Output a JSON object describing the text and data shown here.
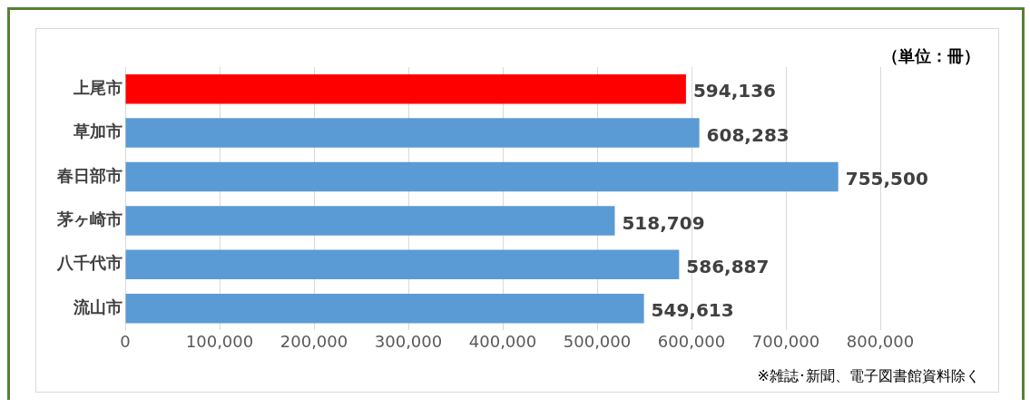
{
  "chart_data": {
    "type": "bar",
    "orientation": "horizontal",
    "categories": [
      "上尾市",
      "草加市",
      "春日部市",
      "茅ヶ崎市",
      "八千代市",
      "流山市"
    ],
    "values": [
      594136,
      608283,
      755500,
      518709,
      586887,
      549613
    ],
    "colors": [
      "#ff0000",
      "#5b9bd5",
      "#5b9bd5",
      "#5b9bd5",
      "#5b9bd5",
      "#5b9bd5"
    ],
    "value_labels": [
      "594,136",
      "608,283",
      "755,500",
      "518,709",
      "586,887",
      "549,613"
    ],
    "xlim": [
      0,
      800000
    ],
    "xticks": [
      0,
      {
        "value": 100000,
        "label": "100,000"
      },
      {
        "value": 200000,
        "label": "200,000"
      },
      {
        "value": 300000,
        "label": "300,000"
      },
      {
        "value": 400000,
        "label": "400,000"
      },
      {
        "value": 500000,
        "label": "500,000"
      },
      {
        "value": 600000,
        "label": "600,000"
      },
      {
        "value": 700000,
        "label": "700,000"
      },
      {
        "value": 800000,
        "label": "800,000"
      }
    ],
    "grid": "x",
    "legend": false,
    "annotations": [
      "（単位：冊）",
      "※雑誌･新聞、電子図書館資料除く"
    ]
  }
}
